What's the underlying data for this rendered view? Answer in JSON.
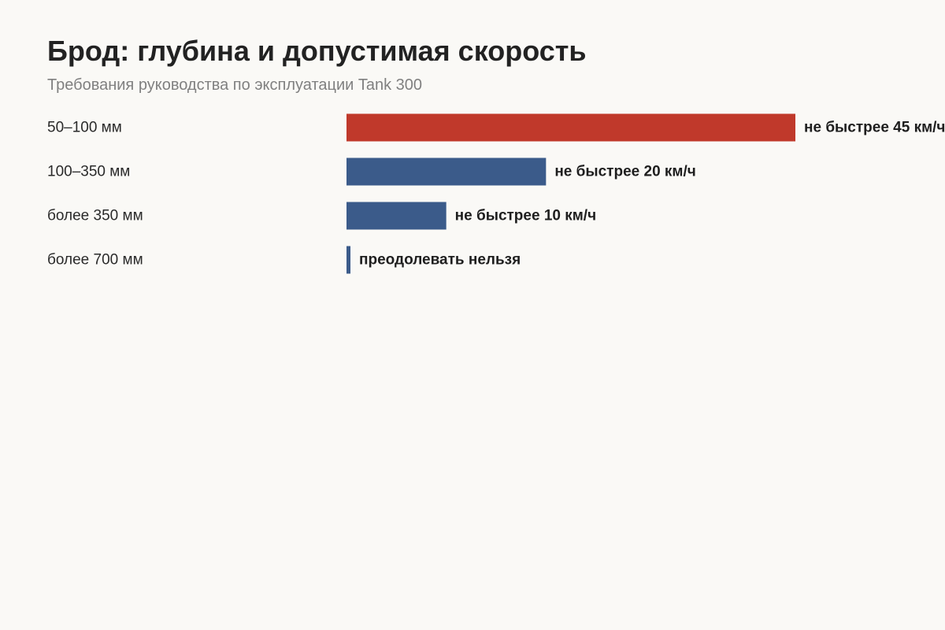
{
  "chart_data": {
    "type": "bar",
    "orientation": "horizontal",
    "title": "Брод: глубина и допустимая скорость",
    "subtitle": "Требования руководства по эксплуатации Tank 300",
    "categories": [
      "50–100 мм",
      "100–350 мм",
      "более 350 мм",
      "более 700 мм"
    ],
    "values": [
      45,
      20,
      10,
      0
    ],
    "value_labels": [
      "не быстрее 45 км/ч",
      "не быстрее 20 км/ч",
      "не быстрее 10 км/ч",
      "преодолевать нельзя"
    ],
    "xlim": [
      0,
      45
    ],
    "xlabel": "",
    "ylabel": "",
    "grid": false,
    "colors": [
      "#c0392b",
      "#3b5b8a",
      "#3b5b8a",
      "#3b5b8a"
    ]
  }
}
